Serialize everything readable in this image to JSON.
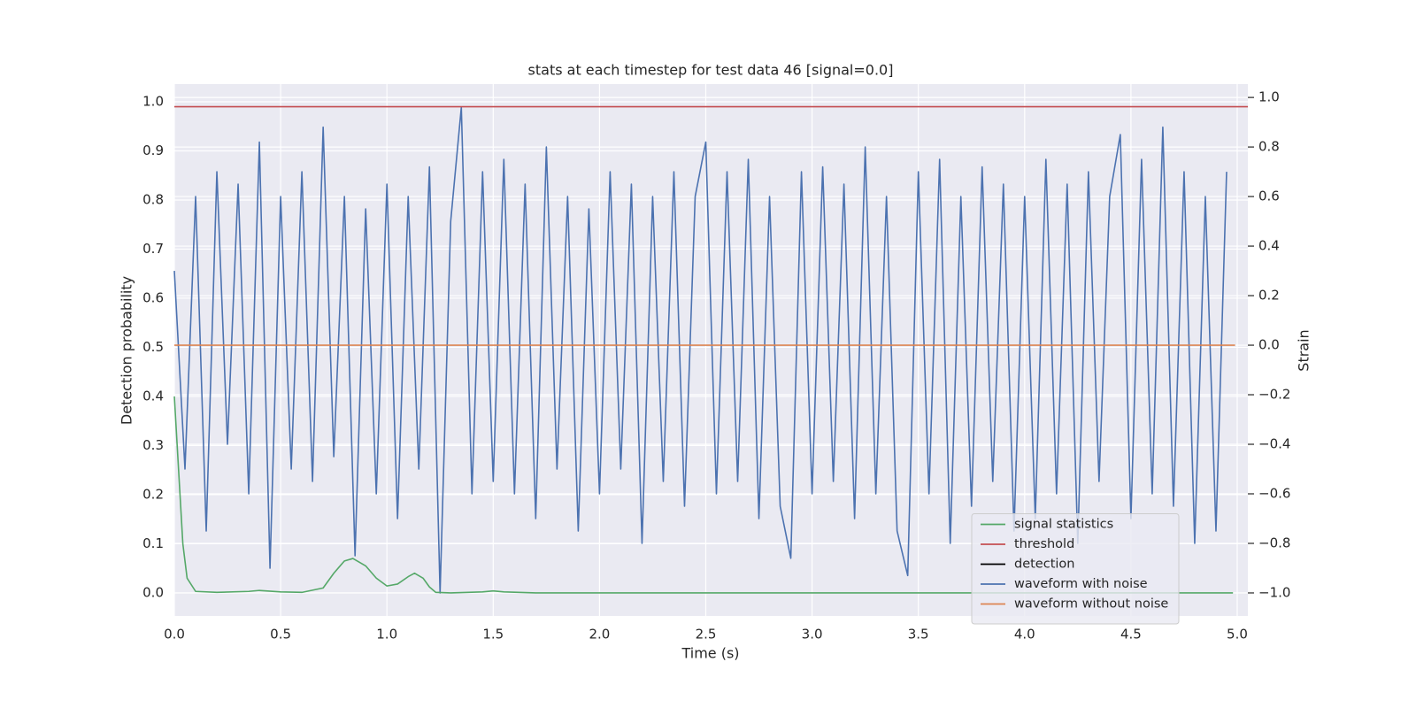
{
  "chart_data": {
    "type": "line",
    "title": "stats at each timestep for test data 46 [signal=0.0]",
    "xlabel": "Time (s)",
    "ylabel": "Detection probability",
    "y2label": "Strain",
    "xlim": [
      0,
      5.05
    ],
    "ylim": [
      -0.047,
      1.036
    ],
    "y2lim": [
      -1.093,
      1.054
    ],
    "xticks": [
      {
        "value": 0,
        "label": "0.0"
      },
      {
        "value": 0.5,
        "label": "0.5"
      },
      {
        "value": 1,
        "label": "1.0"
      },
      {
        "value": 1.5,
        "label": "1.5"
      },
      {
        "value": 2,
        "label": "2.0"
      },
      {
        "value": 2.5,
        "label": "2.5"
      },
      {
        "value": 3,
        "label": "3.0"
      },
      {
        "value": 3.5,
        "label": "3.5"
      },
      {
        "value": 4,
        "label": "4.0"
      },
      {
        "value": 4.5,
        "label": "4.5"
      },
      {
        "value": 5,
        "label": "5.0"
      }
    ],
    "yticks": [
      {
        "value": 0,
        "label": "0.0"
      },
      0.1,
      0.2,
      0.3,
      0.4,
      0.5,
      0.6,
      0.7,
      0.8,
      0.9,
      {
        "value": 1,
        "label": "1.0"
      }
    ],
    "y2ticks": [
      {
        "value": -1,
        "label": "−1.0"
      },
      {
        "value": -0.8,
        "label": "−0.8"
      },
      {
        "value": -0.6,
        "label": "−0.6"
      },
      {
        "value": -0.4,
        "label": "−0.4"
      },
      {
        "value": -0.2,
        "label": "−0.2"
      },
      {
        "value": 0,
        "label": "0.0"
      },
      0.2,
      0.4,
      0.6,
      0.8,
      {
        "value": 1,
        "label": "1.0"
      }
    ],
    "grid": true,
    "legend_loc": "lower right",
    "series": [
      {
        "name": "waveform with noise",
        "color": "#4c72b0",
        "axis": "y2",
        "x": [
          0,
          0.05,
          0.1,
          0.15,
          0.2,
          0.25,
          0.3,
          0.35,
          0.4,
          0.45,
          0.5,
          0.55,
          0.6,
          0.65,
          0.7,
          0.75,
          0.8,
          0.85,
          0.9,
          0.95,
          1,
          1.05,
          1.1,
          1.15,
          1.2,
          1.25,
          1.3,
          1.35,
          1.4,
          1.45,
          1.5,
          1.55,
          1.6,
          1.65,
          1.7,
          1.75,
          1.8,
          1.85,
          1.9,
          1.95,
          2,
          2.05,
          2.1,
          2.15,
          2.2,
          2.25,
          2.3,
          2.35,
          2.4,
          2.45,
          2.5,
          2.55,
          2.6,
          2.65,
          2.7,
          2.75,
          2.8,
          2.85,
          2.9,
          2.95,
          3,
          3.05,
          3.1,
          3.15,
          3.2,
          3.25,
          3.3,
          3.35,
          3.4,
          3.45,
          3.5,
          3.55,
          3.6,
          3.65,
          3.7,
          3.75,
          3.8,
          3.85,
          3.9,
          3.95,
          4,
          4.05,
          4.1,
          4.15,
          4.2,
          4.25,
          4.3,
          4.35,
          4.4,
          4.45,
          4.5,
          4.55,
          4.6,
          4.65,
          4.7,
          4.75,
          4.8,
          4.85,
          4.9,
          4.95
        ],
        "values": [
          0.3,
          -0.5,
          0.6,
          -0.75,
          0.7,
          -0.4,
          0.65,
          -0.6,
          0.82,
          -0.9,
          0.6,
          -0.5,
          0.7,
          -0.55,
          0.88,
          -0.45,
          0.6,
          -0.85,
          0.55,
          -0.6,
          0.65,
          -0.7,
          0.6,
          -0.5,
          0.72,
          -1.0,
          0.5,
          0.96,
          -0.6,
          0.7,
          -0.55,
          0.75,
          -0.6,
          0.65,
          -0.7,
          0.8,
          -0.5,
          0.6,
          -0.75,
          0.55,
          -0.6,
          0.7,
          -0.5,
          0.65,
          -0.8,
          0.6,
          -0.55,
          0.7,
          -0.65,
          0.6,
          0.82,
          -0.6,
          0.7,
          -0.55,
          0.75,
          -0.7,
          0.6,
          -0.65,
          -0.86,
          0.7,
          -0.6,
          0.72,
          -0.55,
          0.65,
          -0.7,
          0.8,
          -0.6,
          0.6,
          -0.75,
          -0.93,
          0.7,
          -0.6,
          0.75,
          -0.8,
          0.6,
          -0.65,
          0.72,
          -0.55,
          0.65,
          -0.75,
          0.6,
          -0.7,
          0.75,
          -0.6,
          0.65,
          -0.8,
          0.7,
          -0.55,
          0.6,
          0.85,
          -0.7,
          0.75,
          -0.6,
          0.88,
          -0.65,
          0.7,
          -0.8,
          0.6,
          -0.75,
          0.7
        ]
      },
      {
        "name": "waveform without noise",
        "color": "#dd8452",
        "axis": "y2",
        "x": [
          0,
          4.99
        ],
        "values": [
          0,
          0
        ]
      },
      {
        "name": "signal statistics",
        "color": "#55a868",
        "x": [
          0,
          0.02,
          0.04,
          0.06,
          0.1,
          0.2,
          0.35,
          0.4,
          0.5,
          0.6,
          0.7,
          0.75,
          0.8,
          0.84,
          0.9,
          0.95,
          1,
          1.05,
          1.1,
          1.13,
          1.17,
          1.2,
          1.23,
          1.3,
          1.45,
          1.5,
          1.55,
          1.7,
          4.98
        ],
        "values": [
          0.4,
          0.25,
          0.1,
          0.03,
          0.003,
          0.001,
          0.003,
          0.005,
          0.002,
          0.001,
          0.01,
          0.04,
          0.065,
          0.07,
          0.055,
          0.03,
          0.014,
          0.018,
          0.033,
          0.04,
          0.03,
          0.012,
          0.001,
          0,
          0.002,
          0.004,
          0.002,
          0,
          0
        ]
      },
      {
        "name": "threshold",
        "color": "#c44e52",
        "x": [
          0,
          5.05
        ],
        "values": [
          0.99,
          0.99
        ]
      },
      {
        "name": "detection",
        "color": "#000000",
        "x": [],
        "values": []
      }
    ],
    "legend_order": [
      "signal statistics",
      "threshold",
      "detection",
      "waveform with noise",
      "waveform without noise"
    ]
  }
}
